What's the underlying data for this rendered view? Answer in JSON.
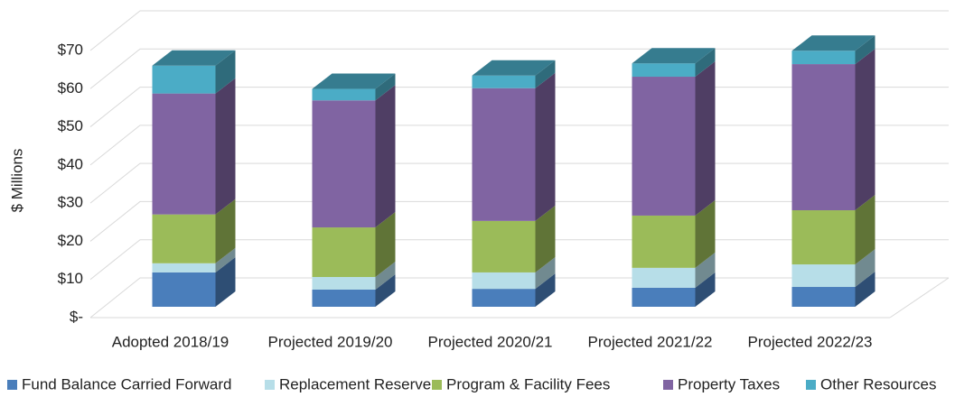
{
  "chart_data": {
    "type": "bar3d_stacked",
    "y_label": "$ Millions",
    "categories": [
      "Adopted 2018/19",
      "Projected 2019/20",
      "Projected 2020/21",
      "Projected 2021/22",
      "Projected 2022/23"
    ],
    "series": [
      {
        "name": "Fund Balance Carried Forward",
        "color": "#4a7ebb",
        "values": [
          9,
          4.5,
          4.7,
          5,
          5.2
        ]
      },
      {
        "name": "Replacement Reserve",
        "color": "#b7dee8",
        "values": [
          2.4,
          3.3,
          4.3,
          5.2,
          5.9
        ]
      },
      {
        "name": "Program & Facility Fees",
        "color": "#9bbb59",
        "values": [
          12.8,
          13,
          13.5,
          13.7,
          14.2
        ]
      },
      {
        "name": "Property Taxes",
        "color": "#8064a2",
        "values": [
          31.7,
          33.3,
          34.8,
          36.4,
          38.3
        ]
      },
      {
        "name": "Other Resources",
        "color": "#4bacc6",
        "values": [
          7.3,
          3,
          3.3,
          3.5,
          3.5
        ]
      }
    ],
    "ylim": [
      0,
      70
    ],
    "yticks": [
      {
        "value": 0,
        "label": "$-"
      },
      {
        "value": 10,
        "label": "$10"
      },
      {
        "value": 20,
        "label": "$20"
      },
      {
        "value": 30,
        "label": "$30"
      },
      {
        "value": 40,
        "label": "$40"
      },
      {
        "value": 50,
        "label": "$50"
      },
      {
        "value": 60,
        "label": "$60"
      },
      {
        "value": 70,
        "label": "$70"
      }
    ],
    "grid": true,
    "legend": "bottom"
  }
}
